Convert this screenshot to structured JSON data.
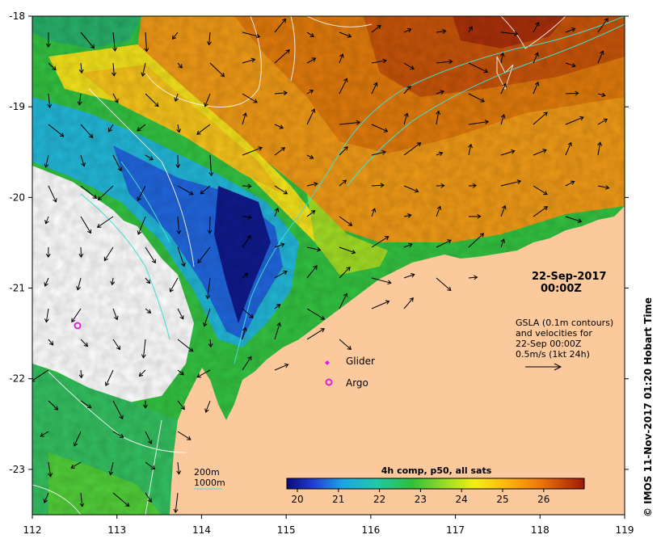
{
  "map": {
    "date_label": "22-Sep-2017",
    "time_label": "00:00Z",
    "gsla_lines": [
      "GSLA (0.1m contours)",
      "and velocities for",
      "22-Sep 00:00Z",
      "0.5m/s (1kt 24h)"
    ],
    "credit": "© IMOS 11-Nov-2017 01:20 Hobart Time",
    "x_ticks": [
      "112",
      "113",
      "114",
      "115",
      "116",
      "117",
      "118",
      "119"
    ],
    "y_ticks": [
      "-18",
      "-19",
      "-20",
      "-21",
      "-22",
      "-23"
    ],
    "legend": {
      "glider": "Glider",
      "argo": "Argo"
    },
    "isobaths": {
      "a": "200m",
      "b": "1000m"
    },
    "colorbar": {
      "title": "4h comp, p50, all sats",
      "ticks": [
        "20",
        "21",
        "22",
        "23",
        "24",
        "25",
        "26"
      ]
    },
    "colors": {
      "land": "#fbc99b",
      "marker": "#e020e0",
      "isobath": "#40e0d0"
    }
  }
}
